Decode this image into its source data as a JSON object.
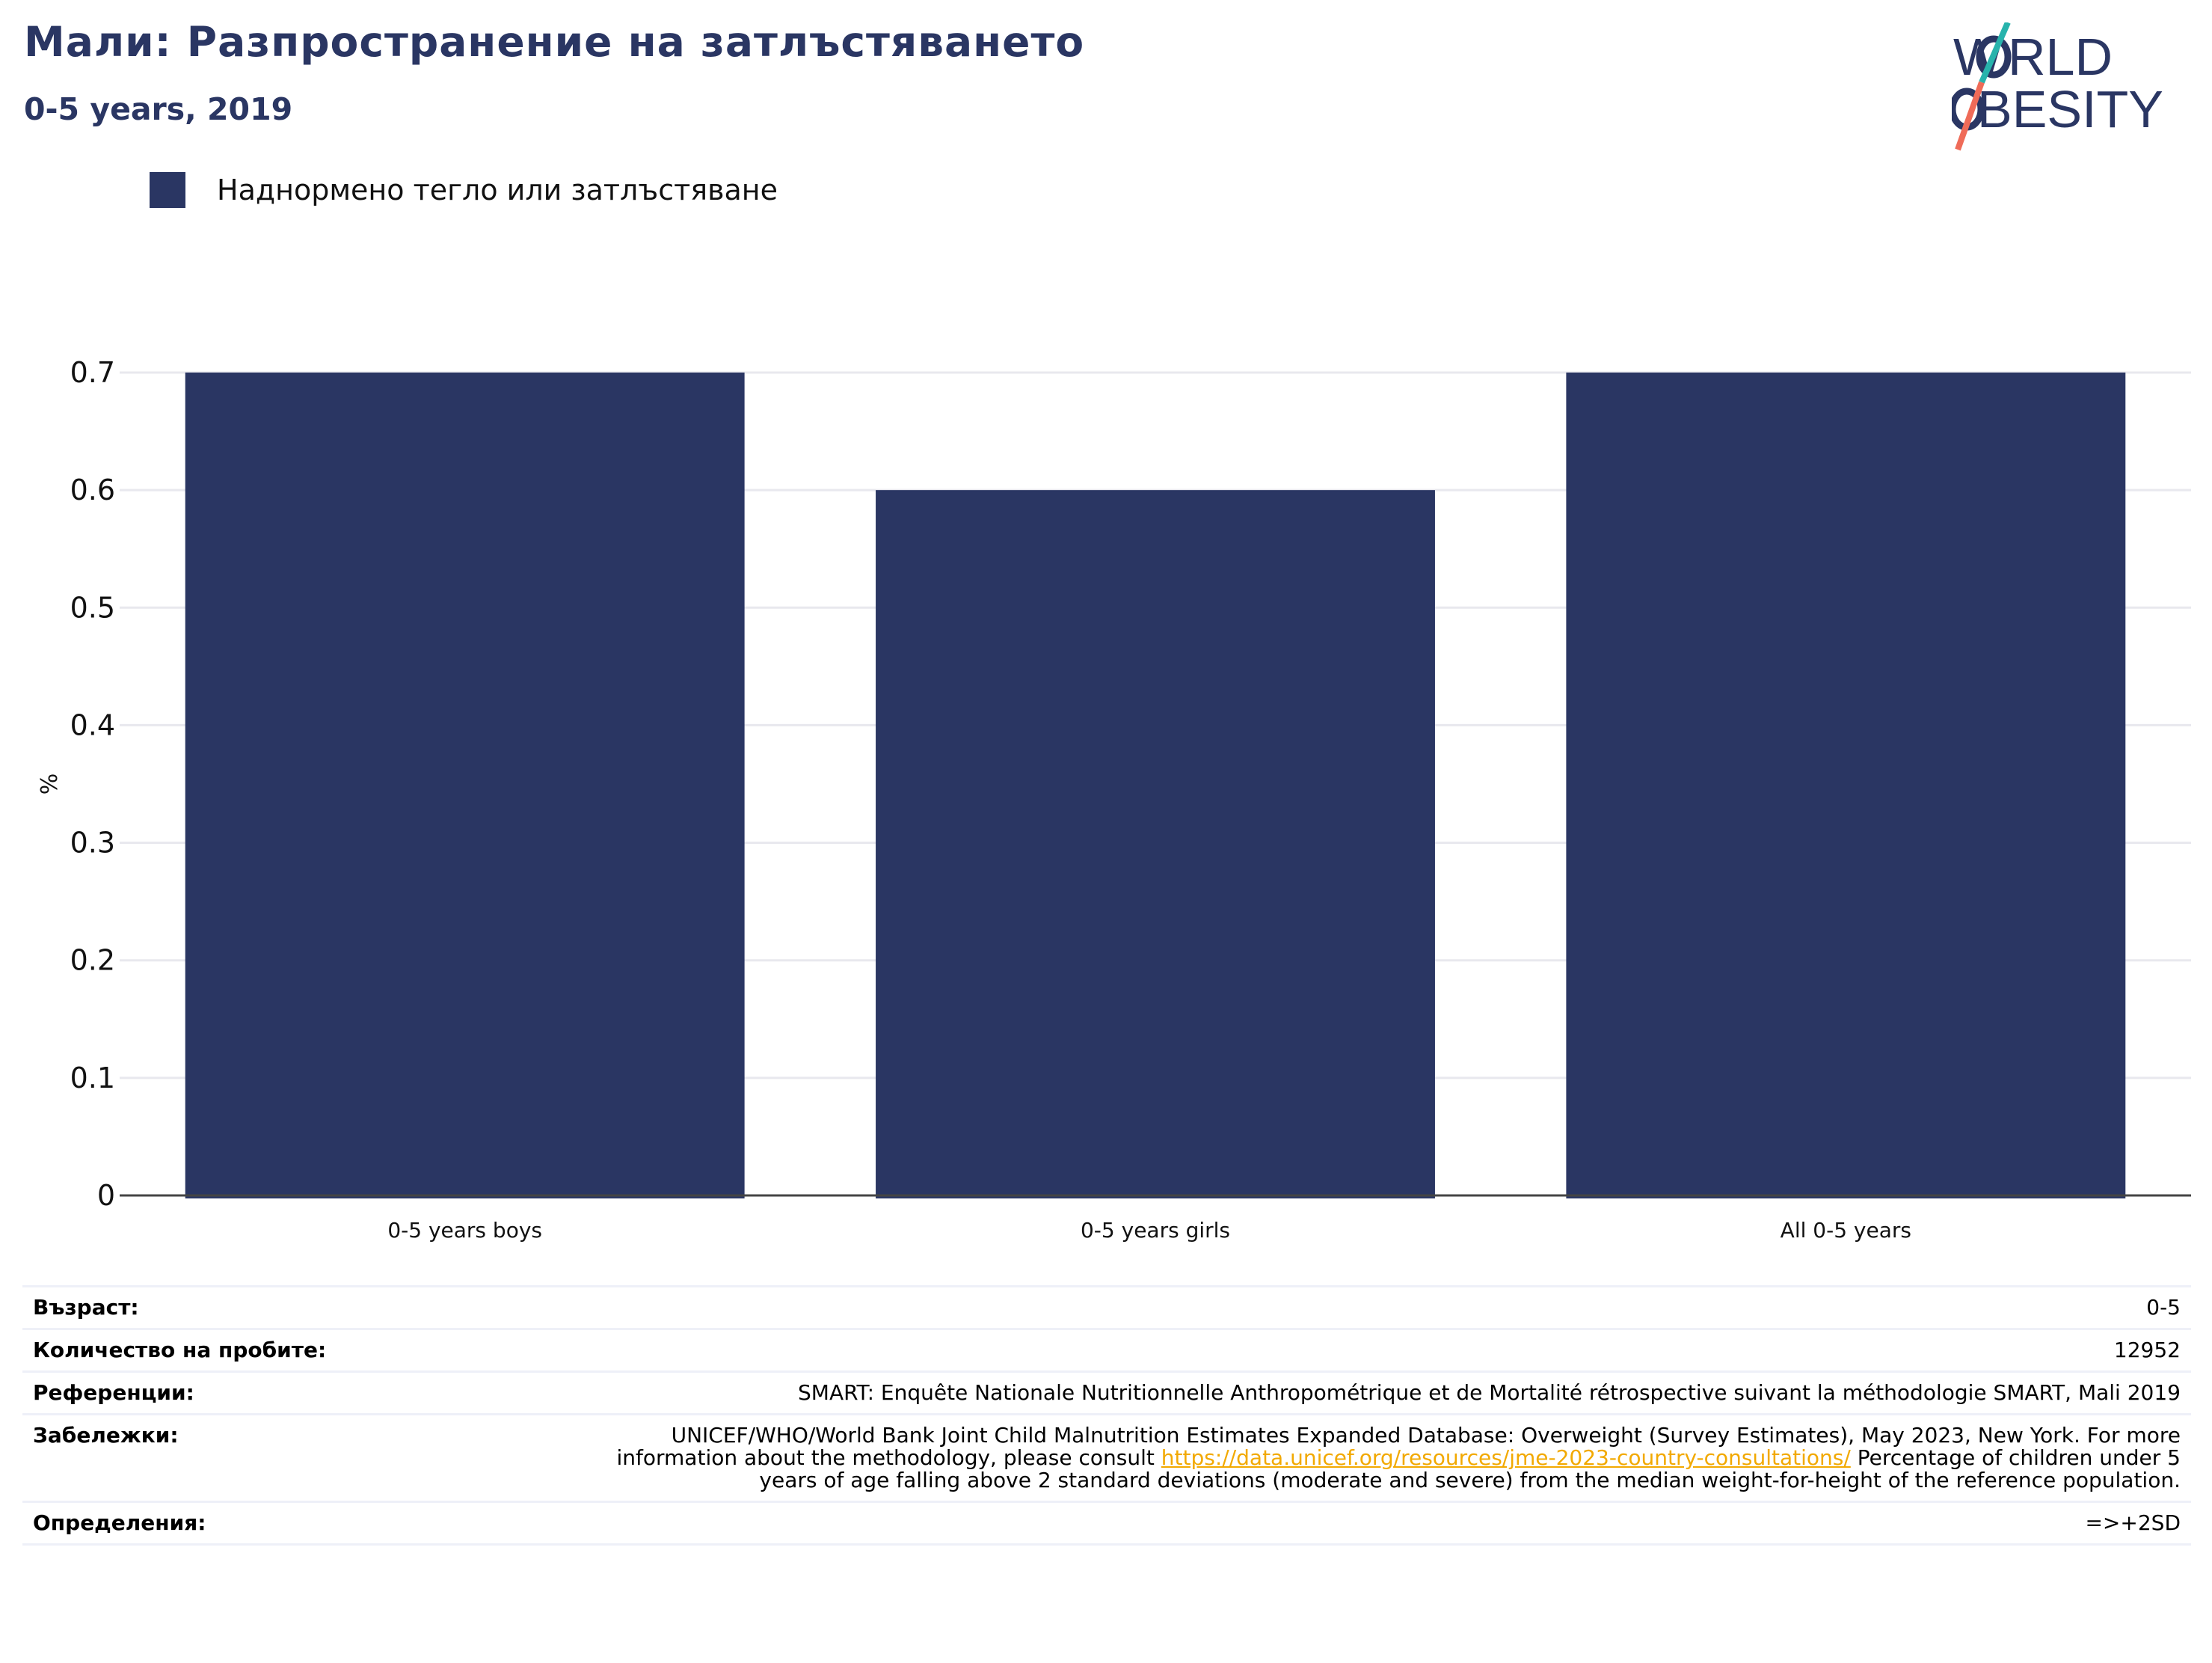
{
  "header": {
    "title": "Мали: Разпространение на затлъстяването",
    "subtitle": "0-5 years, 2019"
  },
  "logo": {
    "line1": "WORLD",
    "line2": "OBESITY"
  },
  "legend": {
    "label": "Наднормено тегло или затлъстяване",
    "color": "#2a3663"
  },
  "chart_data": {
    "type": "bar",
    "categories": [
      "0-5 years boys",
      "0-5 years girls",
      "All 0-5 years"
    ],
    "series": [
      {
        "name": "Наднормено тегло или затлъстяване",
        "values": [
          0.7,
          0.6,
          0.7
        ]
      }
    ],
    "ylabel": "%",
    "ylim": [
      0,
      0.7
    ],
    "yticks": [
      "0",
      "0.1",
      "0.2",
      "0.3",
      "0.4",
      "0.5",
      "0.6",
      "0.7"
    ],
    "grid": true,
    "legend_position": "top-left",
    "bar_color": "#2a3663"
  },
  "info": {
    "age_label": "Възраст:",
    "age_value": "0-5",
    "sample_label": "Количество на пробите:",
    "sample_value": "12952",
    "refs_label": "Референции:",
    "refs_value": "SMART: Enquête Nationale Nutritionnelle Anthropométrique et de Mortalité rétrospective suivant la méthodologie SMART, Mali 2019",
    "notes_label": "Забележки:",
    "notes_before": "UNICEF/WHO/World Bank Joint Child Malnutrition Estimates Expanded Database: Overweight (Survey Estimates), May 2023, New York. For more information about the methodology, please consult ",
    "notes_link": "https://data.unicef.org/resources/jme-2023-country-consultations/",
    "notes_after": " Percentage of children under 5 years of age falling above 2 standard deviations (moderate and severe) from the median weight-for-height of the reference population.",
    "defs_label": "Определения:",
    "defs_value": "=>+2SD"
  }
}
